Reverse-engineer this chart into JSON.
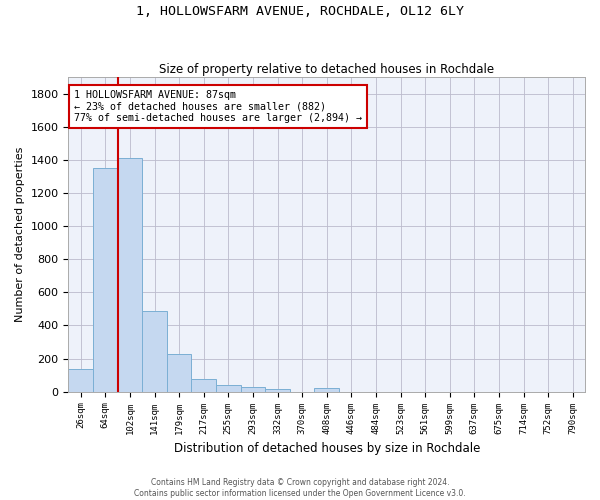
{
  "title": "1, HOLLOWSFARM AVENUE, ROCHDALE, OL12 6LY",
  "subtitle": "Size of property relative to detached houses in Rochdale",
  "xlabel": "Distribution of detached houses by size in Rochdale",
  "ylabel": "Number of detached properties",
  "bar_color": "#c5d8f0",
  "bar_edge_color": "#7bafd4",
  "background_color": "#eef2fa",
  "grid_color": "#bbbbcc",
  "categories": [
    "26sqm",
    "64sqm",
    "102sqm",
    "141sqm",
    "179sqm",
    "217sqm",
    "255sqm",
    "293sqm",
    "332sqm",
    "370sqm",
    "408sqm",
    "446sqm",
    "484sqm",
    "523sqm",
    "561sqm",
    "599sqm",
    "637sqm",
    "675sqm",
    "714sqm",
    "752sqm",
    "790sqm"
  ],
  "values": [
    135,
    1350,
    1410,
    490,
    225,
    75,
    43,
    27,
    15,
    0,
    20,
    0,
    0,
    0,
    0,
    0,
    0,
    0,
    0,
    0,
    0
  ],
  "ylim": [
    0,
    1900
  ],
  "yticks": [
    0,
    200,
    400,
    600,
    800,
    1000,
    1200,
    1400,
    1600,
    1800
  ],
  "vline_x": 1.5,
  "vline_color": "#cc0000",
  "annotation_box_color": "#cc0000",
  "annotation_line1": "1 HOLLOWSFARM AVENUE: 87sqm",
  "annotation_line2": "← 23% of detached houses are smaller (882)",
  "annotation_line3": "77% of semi-detached houses are larger (2,894) →",
  "footer_line1": "Contains HM Land Registry data © Crown copyright and database right 2024.",
  "footer_line2": "Contains public sector information licensed under the Open Government Licence v3.0."
}
